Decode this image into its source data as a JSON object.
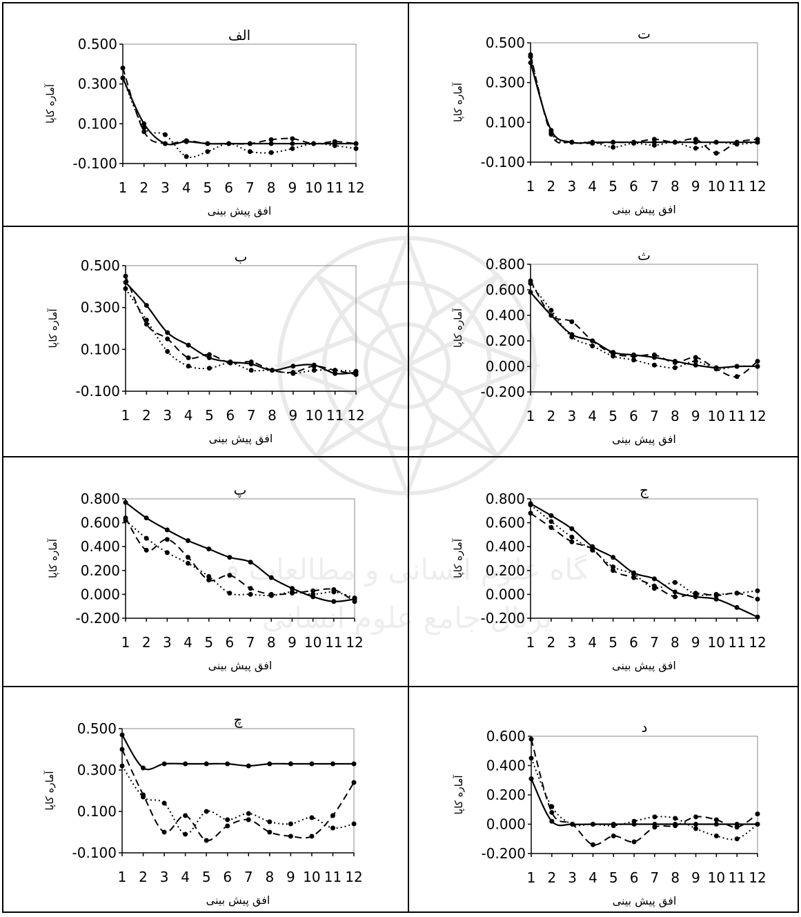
{
  "common": {
    "xlabel": "افق پیش بینی",
    "ylabel": "آماره کاپا",
    "x_ticks": [
      "1",
      "2",
      "3",
      "4",
      "5",
      "6",
      "7",
      "8",
      "9",
      "10",
      "11",
      "12"
    ]
  },
  "watermark": {
    "line1": "پژوهشگاه علوم انسانی و مطالعات فرهنگی",
    "line2": "پرتال جامع علوم انسانی"
  },
  "chart_data": [
    {
      "id": "alef",
      "type": "line",
      "title": "الف",
      "xlabel": "افق پیش بینی",
      "ylabel": "آماره کاپا",
      "x": [
        1,
        2,
        3,
        4,
        5,
        6,
        7,
        8,
        9,
        10,
        11,
        12
      ],
      "ylim": [
        -0.1,
        0.5
      ],
      "yticks": [
        "0.500",
        "0.300",
        "0.100",
        "-0.100"
      ],
      "ytick_values": [
        0.5,
        0.3,
        0.1,
        -0.1
      ],
      "series": [
        {
          "style": "solid",
          "values": [
            0.33,
            0.1,
            0.0,
            0.01,
            0.0,
            0.0,
            0.0,
            0.0,
            0.0,
            0.0,
            0.0,
            0.0
          ]
        },
        {
          "style": "dashed",
          "values": [
            0.38,
            0.06,
            0.0,
            0.015,
            0.0,
            0.0,
            0.0,
            0.02,
            0.025,
            0.0,
            0.01,
            0.0
          ]
        },
        {
          "style": "dotted",
          "values": [
            0.33,
            0.08,
            0.045,
            -0.065,
            -0.04,
            0.0,
            -0.04,
            -0.045,
            -0.025,
            0.0,
            -0.01,
            -0.025
          ]
        }
      ]
    },
    {
      "id": "te",
      "type": "line",
      "title": "ت",
      "xlabel": "افق پیش بینی",
      "ylabel": "آماره کاپا",
      "x": [
        1,
        2,
        3,
        4,
        5,
        6,
        7,
        8,
        9,
        10,
        11,
        12
      ],
      "ylim": [
        -0.1,
        0.5
      ],
      "yticks": [
        "0.500",
        "0.300",
        "0.100",
        "-0.100"
      ],
      "ytick_values": [
        0.5,
        0.3,
        0.1,
        -0.1
      ],
      "series": [
        {
          "style": "solid",
          "values": [
            0.4,
            0.06,
            0.0,
            0.0,
            0.0,
            0.0,
            0.0,
            0.0,
            0.0,
            0.0,
            0.0,
            0.0
          ]
        },
        {
          "style": "dashed",
          "values": [
            0.44,
            0.04,
            0.0,
            -0.005,
            0.0,
            0.0,
            0.015,
            0.0,
            0.015,
            -0.055,
            0.0,
            0.015
          ]
        },
        {
          "style": "dotted",
          "values": [
            0.43,
            0.05,
            0.0,
            0.0,
            -0.025,
            -0.005,
            -0.015,
            0.0,
            -0.03,
            0.0,
            -0.01,
            0.0
          ]
        }
      ]
    },
    {
      "id": "be",
      "type": "line",
      "title": "ب",
      "xlabel": "افق پیش بینی",
      "ylabel": "آماره کاپا",
      "x": [
        1,
        2,
        3,
        4,
        5,
        6,
        7,
        8,
        9,
        10,
        11,
        12
      ],
      "ylim": [
        -0.1,
        0.5
      ],
      "yticks": [
        "0.500",
        "0.300",
        "0.100",
        "-0.100"
      ],
      "ytick_values": [
        0.5,
        0.3,
        0.1,
        -0.1
      ],
      "series": [
        {
          "style": "solid",
          "values": [
            0.42,
            0.31,
            0.18,
            0.12,
            0.06,
            0.04,
            0.03,
            0.0,
            0.02,
            0.025,
            -0.015,
            -0.01
          ]
        },
        {
          "style": "dashed",
          "values": [
            0.45,
            0.22,
            0.15,
            0.06,
            0.075,
            0.035,
            0.04,
            0.0,
            -0.01,
            0.02,
            0.0,
            -0.02
          ]
        },
        {
          "style": "dotted",
          "values": [
            0.39,
            0.24,
            0.09,
            0.02,
            0.01,
            0.035,
            0.0,
            0.0,
            -0.015,
            0.0,
            0.0,
            -0.005
          ]
        }
      ]
    },
    {
      "id": "se",
      "type": "line",
      "title": "ث",
      "xlabel": "افق پیش بینی",
      "ylabel": "آماره کاپا",
      "x": [
        1,
        2,
        3,
        4,
        5,
        6,
        7,
        8,
        9,
        10,
        11,
        12
      ],
      "ylim": [
        -0.2,
        0.8
      ],
      "yticks": [
        "0.800",
        "0.600",
        "0.400",
        "0.200",
        "0.000",
        "-0.200"
      ],
      "ytick_values": [
        0.8,
        0.6,
        0.4,
        0.2,
        0.0,
        -0.2
      ],
      "series": [
        {
          "style": "solid",
          "values": [
            0.58,
            0.4,
            0.25,
            0.2,
            0.11,
            0.09,
            0.07,
            0.04,
            0.01,
            -0.01,
            0.0,
            0.0
          ]
        },
        {
          "style": "dashed",
          "values": [
            0.67,
            0.4,
            0.35,
            0.2,
            0.1,
            0.08,
            0.09,
            0.03,
            0.07,
            -0.02,
            -0.08,
            0.04
          ]
        },
        {
          "style": "dotted",
          "values": [
            0.65,
            0.44,
            0.23,
            0.16,
            0.08,
            0.05,
            0.01,
            -0.01,
            0.04,
            -0.02,
            0.0,
            0.0
          ]
        }
      ]
    },
    {
      "id": "pe",
      "type": "line",
      "title": "پ",
      "xlabel": "افق پیش بینی",
      "ylabel": "آماره کاپا",
      "x": [
        1,
        2,
        3,
        4,
        5,
        6,
        7,
        8,
        9,
        10,
        11,
        12
      ],
      "ylim": [
        -0.2,
        0.8
      ],
      "yticks": [
        "0.800",
        "0.600",
        "0.400",
        "0.200",
        "0.000",
        "-0.200"
      ],
      "ytick_values": [
        0.8,
        0.6,
        0.4,
        0.2,
        0.0,
        -0.2
      ],
      "series": [
        {
          "style": "solid",
          "values": [
            0.77,
            0.64,
            0.54,
            0.45,
            0.38,
            0.31,
            0.27,
            0.14,
            0.05,
            -0.02,
            -0.06,
            -0.04
          ]
        },
        {
          "style": "dashed",
          "values": [
            0.64,
            0.37,
            0.46,
            0.31,
            0.12,
            0.16,
            0.05,
            0.0,
            0.01,
            0.03,
            0.04,
            -0.06
          ]
        },
        {
          "style": "dotted",
          "values": [
            0.62,
            0.47,
            0.35,
            0.26,
            0.15,
            0.01,
            0.0,
            -0.01,
            0.02,
            0.0,
            0.02,
            -0.03
          ]
        }
      ]
    },
    {
      "id": "jim",
      "type": "line",
      "title": "ج",
      "xlabel": "افق پیش بینی",
      "ylabel": "آماره کاپا",
      "x": [
        1,
        2,
        3,
        4,
        5,
        6,
        7,
        8,
        9,
        10,
        11,
        12
      ],
      "ylim": [
        -0.2,
        0.8
      ],
      "yticks": [
        "0.800",
        "0.600",
        "0.400",
        "0.200",
        "0.000",
        "-0.200"
      ],
      "ytick_values": [
        0.8,
        0.6,
        0.4,
        0.2,
        0.0,
        -0.2
      ],
      "series": [
        {
          "style": "solid",
          "values": [
            0.76,
            0.66,
            0.55,
            0.4,
            0.31,
            0.18,
            0.13,
            0.02,
            -0.02,
            -0.04,
            -0.11,
            -0.19
          ]
        },
        {
          "style": "dashed",
          "values": [
            0.68,
            0.56,
            0.44,
            0.38,
            0.2,
            0.14,
            0.07,
            -0.02,
            0.01,
            -0.01,
            0.01,
            -0.04
          ]
        },
        {
          "style": "dotted",
          "values": [
            0.75,
            0.61,
            0.48,
            0.37,
            0.23,
            0.17,
            0.05,
            0.1,
            0.0,
            0.0,
            0.01,
            0.03
          ]
        }
      ]
    },
    {
      "id": "che",
      "type": "line",
      "title": "چ",
      "xlabel": "افق پیش بینی",
      "ylabel": "آماره کاپا",
      "x": [
        1,
        2,
        3,
        4,
        5,
        6,
        7,
        8,
        9,
        10,
        11,
        12
      ],
      "ylim": [
        -0.1,
        0.5
      ],
      "yticks": [
        "0.500",
        "0.300",
        "0.100",
        "-0.100"
      ],
      "ytick_values": [
        0.5,
        0.3,
        0.1,
        -0.1
      ],
      "series": [
        {
          "style": "solid",
          "values": [
            0.47,
            0.31,
            0.33,
            0.33,
            0.33,
            0.33,
            0.32,
            0.33,
            0.33,
            0.33,
            0.33,
            0.33
          ]
        },
        {
          "style": "dashed",
          "values": [
            0.4,
            0.18,
            0.0,
            0.08,
            -0.04,
            0.03,
            0.06,
            0.0,
            -0.02,
            -0.02,
            0.08,
            0.24
          ]
        },
        {
          "style": "dotted",
          "values": [
            0.32,
            0.17,
            0.14,
            -0.01,
            0.1,
            0.06,
            0.09,
            0.05,
            0.04,
            0.07,
            0.02,
            0.04
          ]
        }
      ]
    },
    {
      "id": "dal",
      "type": "line",
      "title": "د",
      "xlabel": "افق پیش بینی",
      "ylabel": "آماره کاپا",
      "x": [
        1,
        2,
        3,
        4,
        5,
        6,
        7,
        8,
        9,
        10,
        11,
        12
      ],
      "ylim": [
        -0.2,
        0.6
      ],
      "yticks": [
        "0.600",
        "0.400",
        "0.200",
        "0.000",
        "-0.200"
      ],
      "ytick_values": [
        0.6,
        0.4,
        0.2,
        0.0,
        -0.2
      ],
      "series": [
        {
          "style": "solid",
          "values": [
            0.31,
            0.02,
            0.0,
            0.0,
            0.0,
            0.0,
            0.0,
            0.0,
            0.0,
            0.0,
            0.0,
            0.0
          ]
        },
        {
          "style": "dashed",
          "values": [
            0.58,
            0.08,
            0.0,
            -0.14,
            -0.08,
            -0.12,
            -0.02,
            -0.01,
            0.05,
            0.03,
            -0.02,
            0.07
          ]
        },
        {
          "style": "dotted",
          "values": [
            0.45,
            0.12,
            0.0,
            0.0,
            -0.01,
            0.02,
            0.05,
            0.04,
            -0.03,
            -0.08,
            -0.1,
            0.0
          ]
        }
      ]
    }
  ]
}
